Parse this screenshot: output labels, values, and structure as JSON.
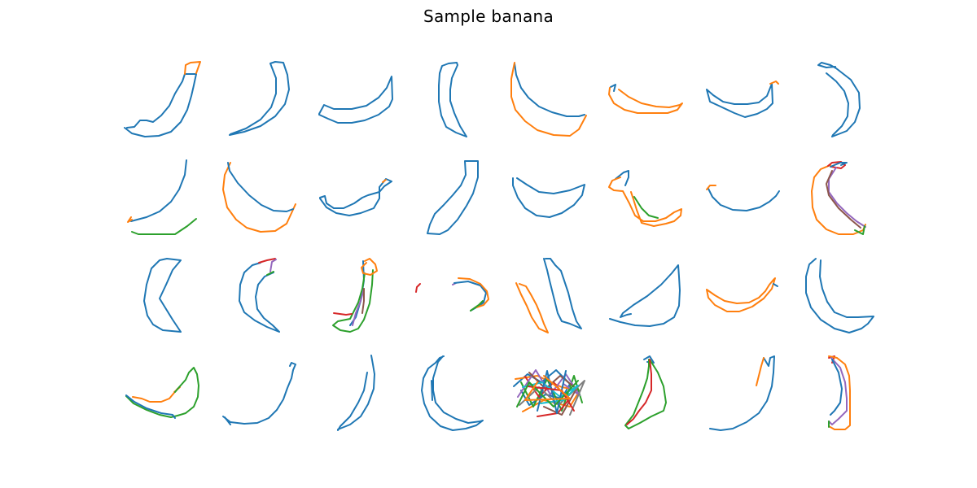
{
  "figure": {
    "title": "Sample banana"
  },
  "grid": {
    "rows": 4,
    "columns": 8,
    "panel_count": 32
  },
  "stroke_palette": [
    "#1f77b4",
    "#ff7f0e",
    "#2ca02c",
    "#d62728",
    "#9467bd",
    "#8c564b",
    "#7f7f7f",
    "#17becf"
  ]
}
